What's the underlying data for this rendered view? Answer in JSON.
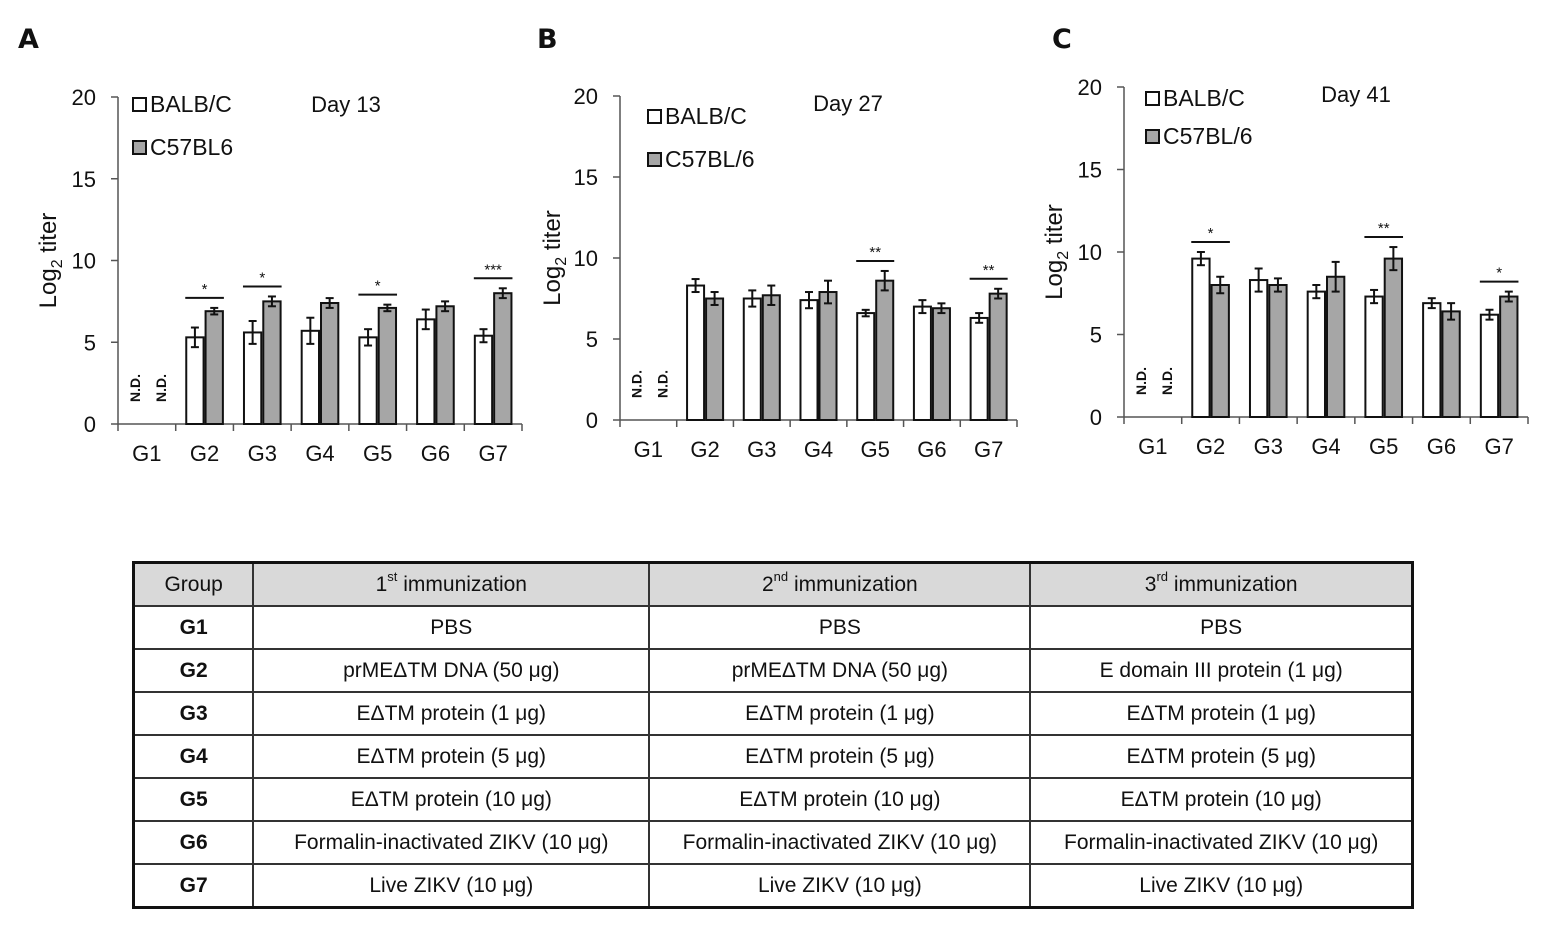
{
  "chart_data": [
    {
      "type": "bar",
      "panel": "A",
      "title": "Day 13",
      "ylabel_base": "Log",
      "ylabel_sub": "2",
      "ylabel_rest": " titer",
      "ylim": [
        0,
        20
      ],
      "yticks": [
        "0",
        "5",
        "10",
        "15",
        "20"
      ],
      "categories": [
        "G1",
        "G2",
        "G3",
        "G4",
        "G5",
        "G6",
        "G7"
      ],
      "series": [
        {
          "name": "BALB/C",
          "color": "#ffffff",
          "values": [
            0,
            5.3,
            5.6,
            5.7,
            5.3,
            6.4,
            5.4
          ],
          "errors": [
            0,
            0.6,
            0.7,
            0.8,
            0.5,
            0.6,
            0.4
          ]
        },
        {
          "name": "C57BL6",
          "color": "#a6a6a6",
          "values": [
            0,
            6.9,
            7.5,
            7.4,
            7.1,
            7.2,
            8.0
          ],
          "errors": [
            0,
            0.2,
            0.3,
            0.3,
            0.2,
            0.3,
            0.3
          ]
        }
      ],
      "nd_labels": [
        "N.D.",
        "N.D."
      ],
      "significance": [
        {
          "category": "G2",
          "label": "*"
        },
        {
          "category": "G3",
          "label": "*"
        },
        {
          "category": "G5",
          "label": "*"
        },
        {
          "category": "G7",
          "label": "***"
        }
      ]
    },
    {
      "type": "bar",
      "panel": "B",
      "title": "Day 27",
      "ylabel_base": "Log",
      "ylabel_sub": "2",
      "ylabel_rest": " titer",
      "ylim": [
        0,
        20
      ],
      "yticks": [
        "0",
        "5",
        "10",
        "15",
        "20"
      ],
      "categories": [
        "G1",
        "G2",
        "G3",
        "G4",
        "G5",
        "G6",
        "G7"
      ],
      "series": [
        {
          "name": "BALB/C",
          "color": "#ffffff",
          "values": [
            0,
            8.3,
            7.5,
            7.4,
            6.6,
            7.0,
            6.3
          ],
          "errors": [
            0,
            0.4,
            0.5,
            0.5,
            0.2,
            0.4,
            0.3
          ]
        },
        {
          "name": "C57BL/6",
          "color": "#a6a6a6",
          "values": [
            0,
            7.5,
            7.7,
            7.9,
            8.6,
            6.9,
            7.8
          ],
          "errors": [
            0,
            0.4,
            0.6,
            0.7,
            0.6,
            0.3,
            0.3
          ]
        }
      ],
      "nd_labels": [
        "N.D.",
        "N.D."
      ],
      "significance": [
        {
          "category": "G5",
          "label": "**"
        },
        {
          "category": "G7",
          "label": "**"
        }
      ]
    },
    {
      "type": "bar",
      "panel": "C",
      "title": "Day 41",
      "ylabel_base": "Log",
      "ylabel_sub": "2",
      "ylabel_rest": " titer",
      "ylim": [
        0,
        20
      ],
      "yticks": [
        "0",
        "5",
        "10",
        "15",
        "20"
      ],
      "categories": [
        "G1",
        "G2",
        "G3",
        "G4",
        "G5",
        "G6",
        "G7"
      ],
      "series": [
        {
          "name": "BALB/C",
          "color": "#ffffff",
          "values": [
            0,
            9.6,
            8.3,
            7.6,
            7.3,
            6.9,
            6.2
          ],
          "errors": [
            0,
            0.4,
            0.7,
            0.4,
            0.4,
            0.3,
            0.3
          ]
        },
        {
          "name": "C57BL/6",
          "color": "#a6a6a6",
          "values": [
            0,
            8.0,
            8.0,
            8.5,
            9.6,
            6.4,
            7.3
          ],
          "errors": [
            0,
            0.5,
            0.4,
            0.9,
            0.7,
            0.5,
            0.3
          ]
        }
      ],
      "nd_labels": [
        "N.D.",
        "N.D."
      ],
      "significance": [
        {
          "category": "G2",
          "label": "*"
        },
        {
          "category": "G5",
          "label": "**"
        },
        {
          "category": "G7",
          "label": "*"
        }
      ]
    }
  ],
  "table": {
    "headers": [
      {
        "main": "Group",
        "sup": "",
        "rest": ""
      },
      {
        "main": "1",
        "sup": "st",
        "rest": " immunization"
      },
      {
        "main": "2",
        "sup": "nd",
        "rest": " immunization"
      },
      {
        "main": "3",
        "sup": "rd",
        "rest": " immunization"
      }
    ],
    "rows": [
      [
        "G1",
        "PBS",
        "PBS",
        "PBS"
      ],
      [
        "G2",
        "prMEΔTM DNA (50 μg)",
        "prMEΔTM DNA (50 μg)",
        "E domain III protein (1 μg)"
      ],
      [
        "G3",
        "EΔTM protein (1 μg)",
        "EΔTM protein (1 μg)",
        "EΔTM protein (1 μg)"
      ],
      [
        "G4",
        "EΔTM protein (5 μg)",
        "EΔTM protein (5 μg)",
        "EΔTM protein (5 μg)"
      ],
      [
        "G5",
        "EΔTM protein (10 μg)",
        "EΔTM protein (10 μg)",
        "EΔTM protein (10 μg)"
      ],
      [
        "G6",
        "Formalin-inactivated ZIKV (10 μg)",
        "Formalin-inactivated ZIKV (10 μg)",
        "Formalin-inactivated ZIKV (10 μg)"
      ],
      [
        "G7",
        "Live ZIKV (10 μg)",
        "Live ZIKV (10 μg)",
        "Live ZIKV (10 μg)"
      ]
    ]
  }
}
